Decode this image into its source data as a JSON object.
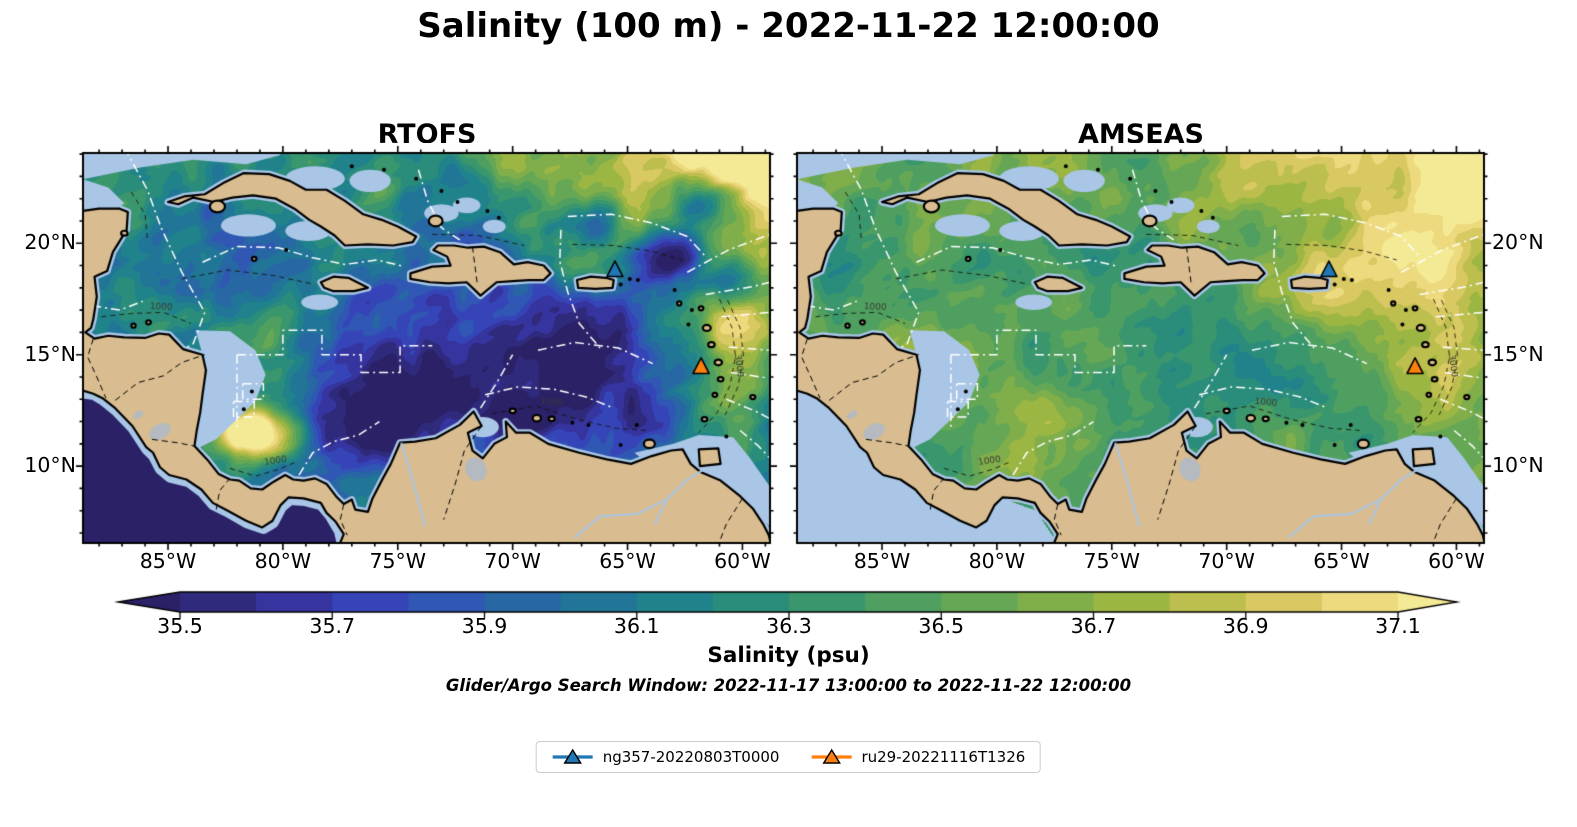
{
  "title": "Salinity (100 m) - 2022-11-22 12:00:00",
  "panels": [
    {
      "title": "RTOFS",
      "lat_tick_labels": [
        "20°N",
        "15°N",
        "10°N"
      ],
      "lon_tick_labels": [
        "85°W",
        "80°W",
        "75°W",
        "70°W",
        "65°W",
        "60°W"
      ],
      "lat_label_side": "left"
    },
    {
      "title": "AMSEAS",
      "lat_tick_labels": [
        "20°N",
        "15°N",
        "10°N"
      ],
      "lon_tick_labels": [
        "85°W",
        "80°W",
        "75°W",
        "70°W",
        "65°W",
        "60°W"
      ],
      "lat_label_side": "right"
    }
  ],
  "colorbar": {
    "label": "Salinity (psu)",
    "tick_labels": [
      "35.5",
      "35.7",
      "35.9",
      "36.1",
      "36.3",
      "36.5",
      "36.7",
      "36.9",
      "37.1"
    ],
    "tick_values": [
      35.5,
      35.7,
      35.9,
      36.1,
      36.3,
      36.5,
      36.7,
      36.9,
      37.1
    ],
    "range": [
      35.5,
      37.1
    ],
    "segment_step": 0.1,
    "segment_colors": [
      "#302a7c",
      "#36349f",
      "#3545b8",
      "#2f57b3",
      "#2767a4",
      "#217597",
      "#20828b",
      "#2a8d7b",
      "#3a966c",
      "#4e9f60",
      "#65a755",
      "#7fae4b",
      "#9cb643",
      "#bcbe4e",
      "#d9c962",
      "#eeda7e"
    ],
    "under_color": "#2a2167",
    "over_color": "#f4ea96"
  },
  "annotation": "Glider/Argo Search Window: 2022-11-17 13:00:00 to 2022-11-22 12:00:00",
  "legend": {
    "items": [
      {
        "label": "ng357-20220803T0000",
        "color": "#1f77b4",
        "marker": "triangle-up"
      },
      {
        "label": "ru29-20221116T1326",
        "color": "#ff7f0e",
        "marker": "triangle-up"
      }
    ]
  },
  "gliders": [
    {
      "id": "ng357-20220803T0000",
      "lon": -65.55,
      "lat": 18.8,
      "color": "#1f77b4"
    },
    {
      "id": "ru29-20221116T1326",
      "lon": -61.8,
      "lat": 14.45,
      "color": "#ff7f0e"
    }
  ],
  "bathy_labels": [
    "1000",
    "3000"
  ],
  "map_colors": {
    "land": "#d9bd90",
    "shallow_water": "#a9c6e6",
    "coastline": "#000000",
    "eez_line": "#ffffff",
    "lake": "#b4bac0"
  }
}
